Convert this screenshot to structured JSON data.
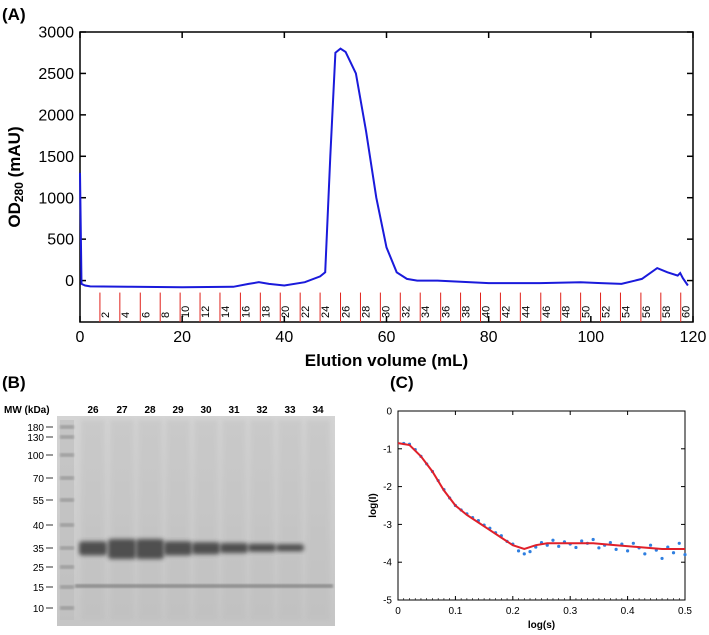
{
  "chart_data": [
    {
      "type": "line",
      "panel_label": "(A)",
      "xlabel": "Elution volume (mL)",
      "ylabel": {
        "main": "OD",
        "sub": "280",
        "unit": " (mAU)"
      },
      "color": "#1a1adb",
      "x": [
        0,
        0.3,
        1,
        2,
        10,
        20,
        30,
        33,
        35,
        37,
        40,
        44,
        47,
        48,
        49,
        50,
        51,
        52,
        54,
        56,
        58,
        60,
        62,
        64,
        66,
        70,
        80,
        90,
        98,
        102,
        106,
        110,
        113,
        115,
        117,
        117.5,
        118,
        119
      ],
      "values": [
        1300,
        -40,
        -60,
        -70,
        -75,
        -80,
        -75,
        -40,
        -20,
        -40,
        -60,
        -20,
        50,
        100,
        1500,
        2750,
        2800,
        2760,
        2500,
        1800,
        1000,
        400,
        100,
        20,
        0,
        0,
        -30,
        -30,
        -20,
        -30,
        -40,
        20,
        150,
        100,
        60,
        90,
        30,
        -60
      ],
      "xlim": [
        0,
        120
      ],
      "xticks": [
        0,
        20,
        40,
        60,
        80,
        100,
        120
      ],
      "ylim": [
        -500,
        3000
      ],
      "yticks": [
        0,
        500,
        1000,
        1500,
        2000,
        2500,
        3000
      ],
      "fractions": {
        "color": "#e0201a",
        "x": [
          3.9,
          7.8,
          11.8,
          15.7,
          19.6,
          23.5,
          27.4,
          31.4,
          35.3,
          39.2,
          43.1,
          47,
          51,
          54.9,
          58.8,
          62.7,
          66.6,
          70.6,
          74.5,
          78.4,
          82.3,
          86.2,
          90.2,
          94.1,
          98,
          101.9,
          105.8,
          109.8,
          113.7,
          117.6
        ],
        "labels": [
          2,
          4,
          6,
          8,
          10,
          12,
          14,
          16,
          18,
          20,
          22,
          24,
          26,
          28,
          30,
          32,
          34,
          36,
          38,
          40,
          42,
          44,
          46,
          48,
          50,
          52,
          54,
          56,
          58,
          60
        ]
      }
    },
    {
      "type": "gel",
      "panel_label": "(B)",
      "ladder_title": "MW (kDa)",
      "categories": [
        26,
        27,
        28,
        29,
        30,
        31,
        32,
        33,
        34
      ],
      "ladder": [
        180,
        130,
        100,
        70,
        55,
        40,
        35,
        25,
        15,
        10
      ]
    },
    {
      "type": "scatter",
      "panel_label": "(C)",
      "xlabel": "log(s)",
      "ylabel": "log(I)",
      "xlim": [
        0,
        0.5
      ],
      "xticks": [
        0,
        0.1,
        0.2,
        0.3,
        0.4,
        0.5
      ],
      "ylim": [
        -5,
        0
      ],
      "yticks": [
        0,
        -1,
        -2,
        -3,
        -4,
        -5
      ],
      "series": [
        {
          "mode": "markers",
          "color": "#2f7fe0",
          "x": [
            0.01,
            0.02,
            0.03,
            0.04,
            0.05,
            0.06,
            0.07,
            0.08,
            0.09,
            0.1,
            0.11,
            0.12,
            0.13,
            0.14,
            0.15,
            0.16,
            0.17,
            0.18,
            0.19,
            0.2,
            0.21,
            0.22,
            0.23,
            0.24,
            0.25,
            0.26,
            0.27,
            0.28,
            0.29,
            0.3,
            0.31,
            0.32,
            0.33,
            0.34,
            0.35,
            0.36,
            0.37,
            0.38,
            0.39,
            0.4,
            0.41,
            0.42,
            0.43,
            0.44,
            0.45,
            0.46,
            0.47,
            0.48,
            0.49,
            0.5
          ],
          "values": [
            -0.86,
            -0.88,
            -1.02,
            -1.2,
            -1.4,
            -1.6,
            -1.84,
            -2.08,
            -2.3,
            -2.5,
            -2.62,
            -2.72,
            -2.82,
            -2.9,
            -3.02,
            -3.1,
            -3.22,
            -3.3,
            -3.45,
            -3.52,
            -3.7,
            -3.78,
            -3.72,
            -3.6,
            -3.48,
            -3.55,
            -3.42,
            -3.58,
            -3.46,
            -3.52,
            -3.61,
            -3.44,
            -3.5,
            -3.4,
            -3.62,
            -3.55,
            -3.48,
            -3.66,
            -3.52,
            -3.7,
            -3.5,
            -3.62,
            -3.78,
            -3.55,
            -3.68,
            -3.9,
            -3.6,
            -3.75,
            -3.5,
            -3.8
          ]
        },
        {
          "mode": "line",
          "color": "#e0202a",
          "x": [
            0,
            0.02,
            0.04,
            0.06,
            0.08,
            0.1,
            0.12,
            0.14,
            0.16,
            0.18,
            0.2,
            0.22,
            0.24,
            0.26,
            0.3,
            0.34,
            0.38,
            0.42,
            0.46,
            0.5
          ],
          "values": [
            -0.85,
            -0.9,
            -1.2,
            -1.6,
            -2.1,
            -2.5,
            -2.75,
            -2.95,
            -3.15,
            -3.35,
            -3.55,
            -3.65,
            -3.55,
            -3.5,
            -3.5,
            -3.5,
            -3.55,
            -3.6,
            -3.65,
            -3.65
          ]
        }
      ]
    }
  ]
}
